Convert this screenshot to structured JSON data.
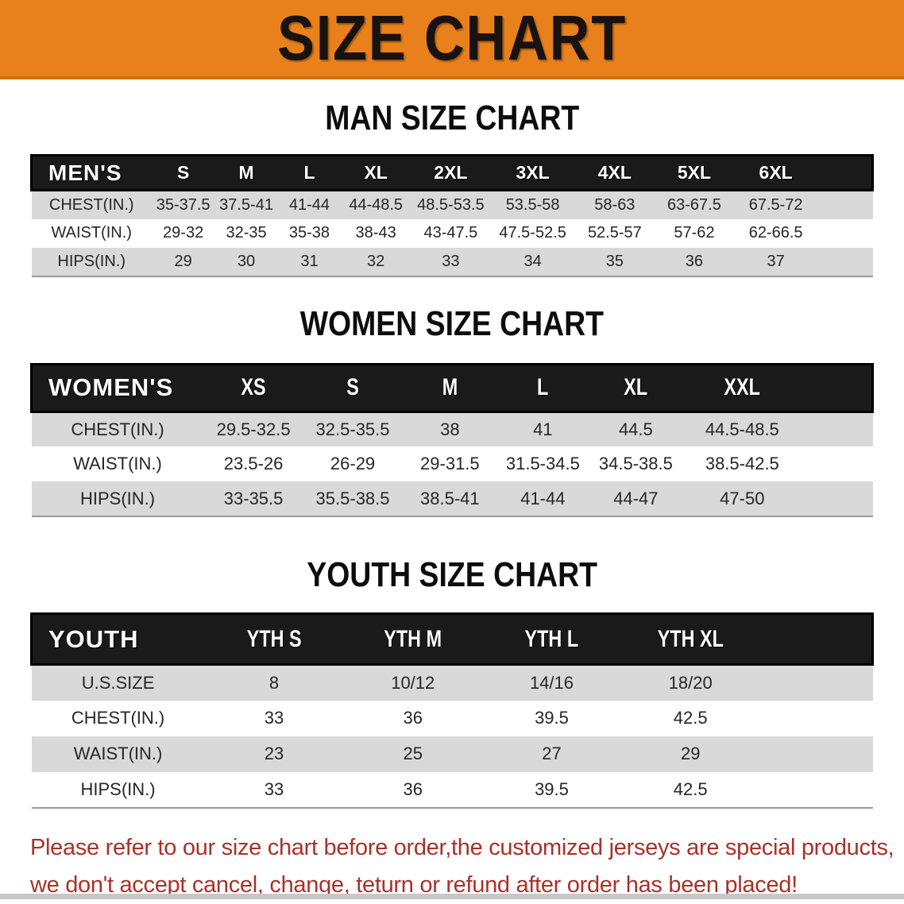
{
  "banner": {
    "title": "SIZE CHART"
  },
  "colors": {
    "banner_bg": "#e8811b",
    "banner_text": "#181210",
    "header_bar_bg": "#1a1a1a",
    "header_bar_text": "#ffffff",
    "row_stripe": "#d9d9d9",
    "row_white": "#ffffff",
    "body_text": "#262626",
    "footer_text": "#a93128"
  },
  "sections": [
    {
      "title": "MAN SIZE CHART",
      "table": {
        "corner_label": "MEN'S",
        "columns": [
          "S",
          "M",
          "L",
          "XL",
          "2XL",
          "3XL",
          "4XL",
          "5XL",
          "6XL"
        ],
        "rows": [
          {
            "label": "CHEST(IN.)",
            "values": [
              "35-37.5",
              "37.5-41",
              "41-44",
              "44-48.5",
              "48.5-53.5",
              "53.5-58",
              "58-63",
              "63-67.5",
              "67.5-72"
            ]
          },
          {
            "label": "WAIST(IN.)",
            "values": [
              "29-32",
              "32-35",
              "35-38",
              "38-43",
              "43-47.5",
              "47.5-52.5",
              "52.5-57",
              "57-62",
              "62-66.5"
            ]
          },
          {
            "label": "HIPS(IN.)",
            "values": [
              "29",
              "30",
              "31",
              "32",
              "33",
              "34",
              "35",
              "36",
              "37"
            ]
          }
        ]
      }
    },
    {
      "title": "WOMEN SIZE CHART",
      "table": {
        "corner_label": "WOMEN'S",
        "columns": [
          "XS",
          "S",
          "M",
          "L",
          "XL",
          "XXL"
        ],
        "rows": [
          {
            "label": "CHEST(IN.)",
            "values": [
              "29.5-32.5",
              "32.5-35.5",
              "38",
              "41",
              "44.5",
              "44.5-48.5"
            ]
          },
          {
            "label": "WAIST(IN.)",
            "values": [
              "23.5-26",
              "26-29",
              "29-31.5",
              "31.5-34.5",
              "34.5-38.5",
              "38.5-42.5"
            ]
          },
          {
            "label": "HIPS(IN.)",
            "values": [
              "33-35.5",
              "35.5-38.5",
              "38.5-41",
              "41-44",
              "44-47",
              "47-50"
            ]
          }
        ]
      }
    },
    {
      "title": "YOUTH SIZE CHART",
      "table": {
        "corner_label": "YOUTH",
        "columns": [
          "YTH S",
          "YTH M",
          "YTH L",
          "YTH XL"
        ],
        "rows": [
          {
            "label": "U.S.SIZE",
            "values": [
              "8",
              "10/12",
              "14/16",
              "18/20"
            ]
          },
          {
            "label": "CHEST(IN.)",
            "values": [
              "33",
              "36",
              "39.5",
              "42.5"
            ]
          },
          {
            "label": "WAIST(IN.)",
            "values": [
              "23",
              "25",
              "27",
              "29"
            ]
          },
          {
            "label": "HIPS(IN.)",
            "values": [
              "33",
              "36",
              "39.5",
              "42.5"
            ]
          }
        ]
      }
    }
  ],
  "footer": {
    "lines": [
      "Please refer to our size chart before order,the customized jerseys are special products,",
      "we don't accept cancel, change, teturn or refund after order has been placed!"
    ]
  }
}
